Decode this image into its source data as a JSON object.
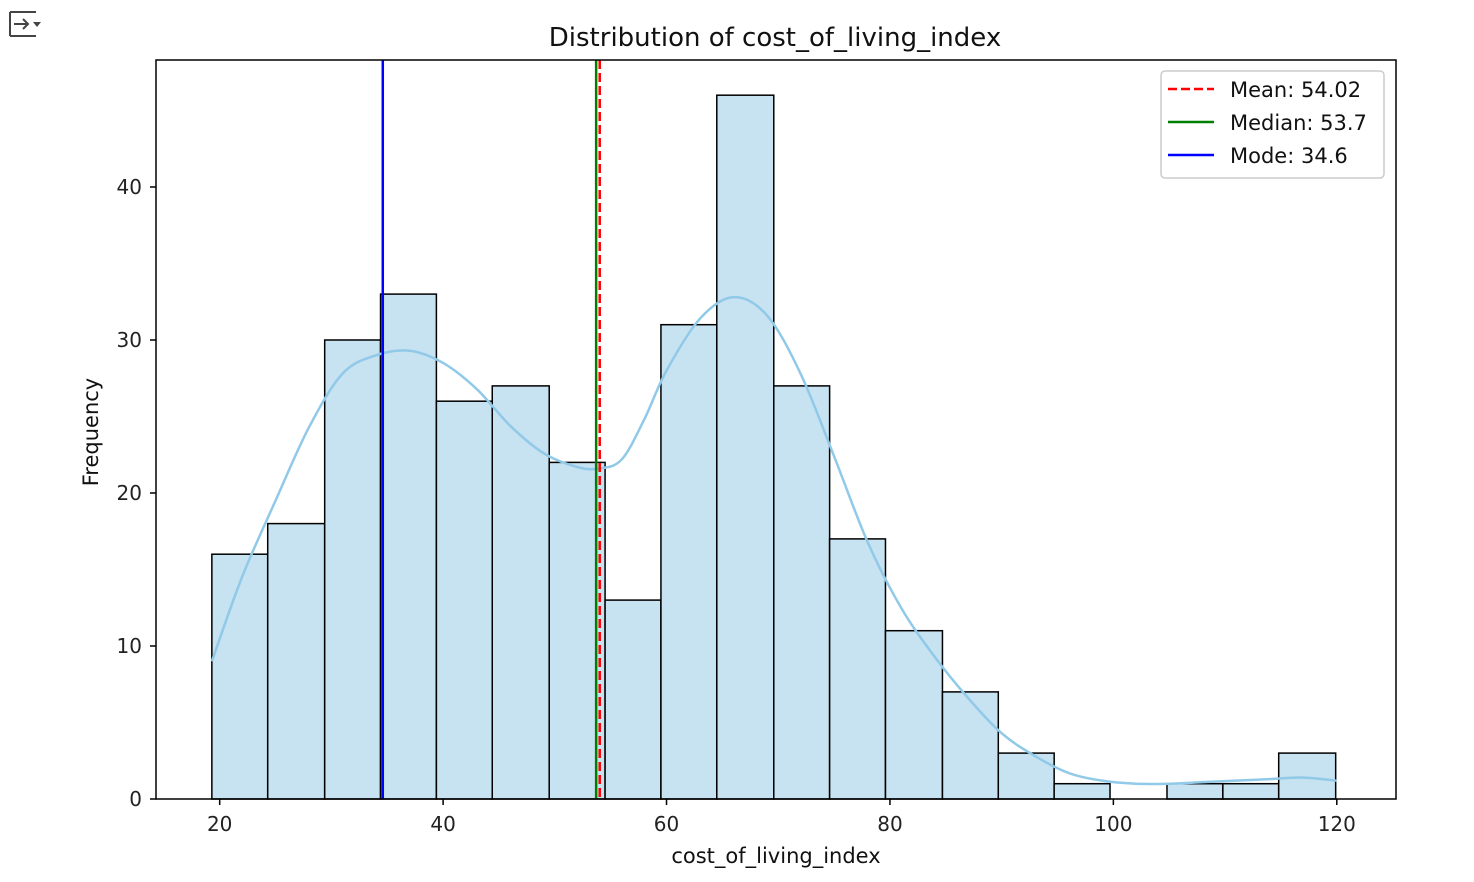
{
  "toolbar": {
    "output_toggle_icon": "collapse-output-icon"
  },
  "chart_data": {
    "type": "bar",
    "title": "Distribution of cost_of_living_index",
    "xlabel": "cost_of_living_index",
    "ylabel": "Frequency",
    "xlim": [
      14.3,
      125.3
    ],
    "ylim": [
      0,
      48.3
    ],
    "xticks": [
      20,
      40,
      60,
      80,
      100,
      120
    ],
    "yticks": [
      0,
      10,
      20,
      30,
      40
    ],
    "bins": [
      {
        "x0": 19.3,
        "x1": 24.3,
        "count": 16
      },
      {
        "x0": 24.3,
        "x1": 29.4,
        "count": 18
      },
      {
        "x0": 29.4,
        "x1": 34.4,
        "count": 30
      },
      {
        "x0": 34.4,
        "x1": 39.4,
        "count": 33
      },
      {
        "x0": 39.4,
        "x1": 44.4,
        "count": 26
      },
      {
        "x0": 44.4,
        "x1": 49.5,
        "count": 27
      },
      {
        "x0": 49.5,
        "x1": 54.5,
        "count": 22
      },
      {
        "x0": 54.5,
        "x1": 59.5,
        "count": 13
      },
      {
        "x0": 59.5,
        "x1": 64.5,
        "count": 31
      },
      {
        "x0": 64.5,
        "x1": 69.6,
        "count": 46
      },
      {
        "x0": 69.6,
        "x1": 74.6,
        "count": 27
      },
      {
        "x0": 74.6,
        "x1": 79.6,
        "count": 17
      },
      {
        "x0": 79.6,
        "x1": 84.7,
        "count": 11
      },
      {
        "x0": 84.7,
        "x1": 89.7,
        "count": 7
      },
      {
        "x0": 89.7,
        "x1": 94.7,
        "count": 3
      },
      {
        "x0": 94.7,
        "x1": 99.7,
        "count": 1
      },
      {
        "x0": 99.7,
        "x1": 104.8,
        "count": 0
      },
      {
        "x0": 104.8,
        "x1": 109.8,
        "count": 1
      },
      {
        "x0": 109.8,
        "x1": 114.8,
        "count": 1
      },
      {
        "x0": 114.8,
        "x1": 119.9,
        "count": 3
      }
    ],
    "kde": {
      "x": [
        19.3,
        22,
        25,
        28,
        31,
        34,
        37,
        40,
        43,
        46,
        49,
        52,
        54,
        56,
        58,
        60,
        63,
        66,
        69,
        72,
        75,
        78,
        81,
        84,
        87,
        90,
        93,
        96,
        99,
        102,
        105,
        108,
        111,
        114,
        117,
        120
      ],
      "y": [
        9,
        14.5,
        19.5,
        24.3,
        27.8,
        29,
        29.3,
        28.5,
        26.8,
        24.4,
        22.6,
        21.7,
        21.6,
        22.2,
        24.8,
        28,
        31.4,
        32.8,
        31.6,
        27.8,
        22.4,
        16.8,
        12.5,
        9.3,
        6.6,
        4.3,
        2.8,
        1.7,
        1.2,
        1.0,
        1.0,
        1.1,
        1.2,
        1.3,
        1.4,
        1.2
      ]
    },
    "vlines": [
      {
        "name": "Mean: 54.02",
        "x": 54.02,
        "color": "#ff0000",
        "style": "dashed"
      },
      {
        "name": "Median: 53.7",
        "x": 53.7,
        "color": "#008000",
        "style": "solid"
      },
      {
        "name": "Mode: 34.6",
        "x": 34.6,
        "color": "#0000ff",
        "style": "solid"
      }
    ],
    "colors": {
      "bar_fill": "#c7e2f0",
      "bar_edge": "#000000",
      "kde": "#91c9e8"
    },
    "legend_position": "top-right",
    "grid": false
  }
}
